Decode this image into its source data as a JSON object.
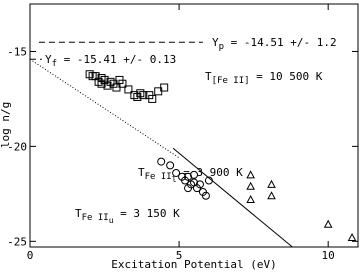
{
  "chart_data": {
    "type": "scatter",
    "x_label": "Excitation Potential (eV)",
    "y_label": "log n/g",
    "xlim": [
      0,
      11
    ],
    "ylim": [
      -25.3,
      -12.5
    ],
    "xticks": [
      0,
      5,
      10
    ],
    "yticks": [
      -15,
      -20,
      -25
    ],
    "series": [
      {
        "marker": "square",
        "color": "#000000",
        "x": [
          2.0,
          2.1,
          2.2,
          2.3,
          2.4,
          2.4,
          2.5,
          2.6,
          2.7,
          2.8,
          2.9,
          3.0,
          3.1,
          3.3,
          3.5,
          3.6,
          3.7,
          3.8,
          4.0,
          4.1,
          4.3,
          4.5
        ],
        "y": [
          -16.2,
          -16.3,
          -16.3,
          -16.6,
          -16.7,
          -16.4,
          -16.5,
          -16.8,
          -16.6,
          -16.7,
          -16.9,
          -16.5,
          -16.7,
          -17.0,
          -17.3,
          -17.4,
          -17.2,
          -17.3,
          -17.3,
          -17.5,
          -17.1,
          -16.9
        ]
      },
      {
        "marker": "circle",
        "color": "#000000",
        "x": [
          4.4,
          4.7,
          4.9,
          5.1,
          5.2,
          5.3,
          5.3,
          5.4,
          5.5,
          5.5,
          5.6,
          5.7,
          5.8,
          5.9,
          6.0
        ],
        "y": [
          -20.8,
          -21.0,
          -21.4,
          -21.6,
          -21.8,
          -21.6,
          -22.2,
          -22.0,
          -21.9,
          -21.5,
          -22.2,
          -22.0,
          -22.4,
          -22.6,
          -21.8
        ]
      },
      {
        "marker": "triangle",
        "color": "#000000",
        "x": [
          7.4,
          7.4,
          7.4,
          8.1,
          8.1,
          10.0,
          10.8
        ],
        "y": [
          -21.5,
          -22.1,
          -22.8,
          -22.0,
          -22.6,
          -24.1,
          -24.8
        ]
      }
    ],
    "lines": [
      {
        "style": "dashed",
        "x": [
          0.3,
          5.8
        ],
        "y": [
          -14.51,
          -14.51
        ]
      },
      {
        "style": "dashed",
        "x": [
          0,
          0.4
        ],
        "y": [
          -15.41,
          -15.41
        ]
      },
      {
        "style": "dotted",
        "x": [
          0,
          5
        ],
        "y": [
          -15.41,
          -20.6
        ]
      },
      {
        "style": "solid",
        "x": [
          4.8,
          8.8
        ],
        "y": [
          -20.1,
          -25.3
        ]
      }
    ],
    "annotations": [
      {
        "base": "Y",
        "sub": "p",
        "rest": " = -14.51 +/- 1.2"
      },
      {
        "base": "Y",
        "sub": "f",
        "rest": " = -15.41 +/- 0.13"
      },
      {
        "base": "T",
        "sub": "[Fe II]",
        "rest": " = 10 500 K"
      },
      {
        "base": "T",
        "sub": "Fe II",
        "subsub": "l",
        "rest": " = 3 900 K"
      },
      {
        "base": "T",
        "sub": "Fe II",
        "subsub": "u",
        "rest": " = 3 150 K"
      }
    ]
  }
}
